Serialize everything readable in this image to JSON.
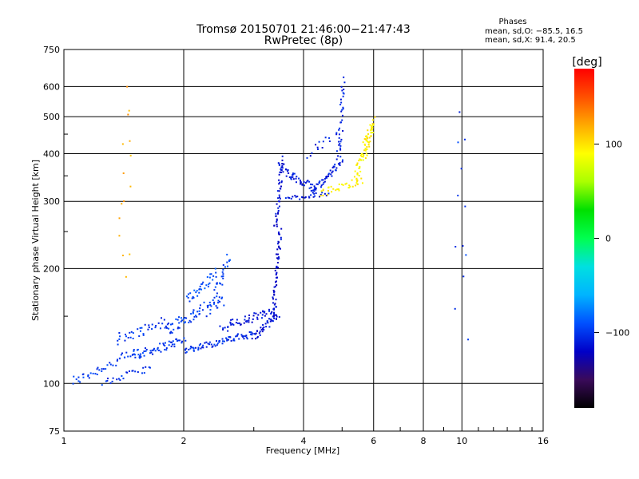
{
  "chart_data": {
    "type": "scatter",
    "title": "Tromsø 20150701 21:46:00−21:47:43",
    "subtitle": "RwPretec (8p)",
    "xlabel": "Frequency [MHz]",
    "ylabel": "Stationary phase Virtual Height [km]",
    "x_scale": "log",
    "y_scale": "log",
    "xlim": [
      1,
      16
    ],
    "ylim": [
      75,
      750
    ],
    "x_ticks": [
      {
        "value": 1,
        "label": "1"
      },
      {
        "value": 2,
        "label": "2"
      },
      {
        "value": 4,
        "label": "4"
      },
      {
        "value": 6,
        "label": "6"
      },
      {
        "value": 8,
        "label": "8"
      },
      {
        "value": 10,
        "label": "10"
      },
      {
        "value": 16,
        "label": "16"
      }
    ],
    "y_ticks": [
      {
        "value": 75,
        "label": "75"
      },
      {
        "value": 100,
        "label": "100"
      },
      {
        "value": 200,
        "label": "200"
      },
      {
        "value": 300,
        "label": "300"
      },
      {
        "value": 400,
        "label": "400"
      },
      {
        "value": 500,
        "label": "500"
      },
      {
        "value": 600,
        "label": "600"
      },
      {
        "value": 750,
        "label": "750"
      }
    ],
    "grid": true,
    "phases_legend": {
      "title": "Phases",
      "line_o": "mean, sd,O: −85.5, 16.5",
      "line_x": "mean, sd,X:  91.4, 20.5"
    },
    "colorbar": {
      "label": "[deg]",
      "range": [
        -180,
        180
      ],
      "ticks": [
        {
          "value": 100,
          "label": "100"
        },
        {
          "value": 0,
          "label": "0"
        },
        {
          "value": -100,
          "label": "−100"
        }
      ],
      "colors": [
        "#000000",
        "#3a0a5a",
        "#0000c8",
        "#0050ff",
        "#00b4ff",
        "#00e0e0",
        "#00ff50",
        "#00e000",
        "#aaff00",
        "#ffff00",
        "#ffaa00",
        "#ff5000",
        "#ff0000"
      ]
    },
    "series": [
      {
        "segments": [
          {
            "x0": 1.05,
            "x1": 1.55,
            "y0": 101,
            "y1": 122,
            "n": 45,
            "phase": -98,
            "spread": 0.06
          },
          {
            "x0": 1.5,
            "x1": 2.0,
            "y0": 118,
            "y1": 130,
            "n": 55,
            "phase": -100,
            "spread": 0.05
          },
          {
            "x0": 2.0,
            "x1": 3.0,
            "y0": 122,
            "y1": 135,
            "n": 75,
            "phase": -103,
            "spread": 0.04
          },
          {
            "x0": 3.0,
            "x1": 3.45,
            "y0": 132,
            "y1": 152,
            "n": 40,
            "phase": -115,
            "spread": 0.04
          },
          {
            "x0": 1.35,
            "x1": 1.8,
            "y0": 130,
            "y1": 145,
            "n": 35,
            "phase": -100,
            "spread": 0.07
          },
          {
            "x0": 1.8,
            "x1": 2.5,
            "y0": 138,
            "y1": 165,
            "n": 70,
            "phase": -97,
            "spread": 0.08
          },
          {
            "x0": 2.5,
            "x1": 3.4,
            "y0": 140,
            "y1": 155,
            "n": 55,
            "phase": -112,
            "spread": 0.06
          },
          {
            "x0": 2.05,
            "x1": 2.4,
            "y0": 165,
            "y1": 195,
            "n": 35,
            "phase": -92,
            "spread": 0.06
          },
          {
            "x0": 2.4,
            "x1": 2.6,
            "y0": 170,
            "y1": 215,
            "n": 25,
            "phase": -95,
            "spread": 0.05
          },
          {
            "x0": 1.25,
            "x1": 1.65,
            "y0": 100,
            "y1": 110,
            "n": 25,
            "phase": -102,
            "spread": 0.04
          },
          {
            "x0": 3.35,
            "x1": 3.5,
            "y0": 150,
            "y1": 255,
            "n": 55,
            "phase": -118,
            "spread": 0.04
          },
          {
            "x0": 3.4,
            "x1": 3.55,
            "y0": 255,
            "y1": 390,
            "n": 45,
            "phase": -115,
            "spread": 0.04
          },
          {
            "x0": 3.45,
            "x1": 4.3,
            "y0": 370,
            "y1": 320,
            "n": 50,
            "phase": -110,
            "spread": 0.05
          },
          {
            "x0": 4.2,
            "x1": 5.0,
            "y0": 320,
            "y1": 380,
            "n": 45,
            "phase": -108,
            "spread": 0.05
          },
          {
            "x0": 3.6,
            "x1": 4.6,
            "y0": 305,
            "y1": 315,
            "n": 25,
            "phase": -110,
            "spread": 0.03
          },
          {
            "x0": 4.9,
            "x1": 5.05,
            "y0": 380,
            "y1": 620,
            "n": 35,
            "phase": -108,
            "spread": 0.05
          },
          {
            "x0": 4.1,
            "x1": 4.9,
            "y0": 400,
            "y1": 450,
            "n": 15,
            "phase": -110,
            "spread": 0.06
          },
          {
            "x0": 4.4,
            "x1": 5.6,
            "y0": 315,
            "y1": 340,
            "n": 35,
            "phase": 95,
            "spread": 0.04
          },
          {
            "x0": 5.4,
            "x1": 5.95,
            "y0": 340,
            "y1": 470,
            "n": 60,
            "phase": 92,
            "spread": 0.06
          },
          {
            "x0": 5.7,
            "x1": 6.0,
            "y0": 420,
            "y1": 490,
            "n": 20,
            "phase": 100,
            "spread": 0.05
          },
          {
            "x0": 1.42,
            "x1": 1.42,
            "y0": 190,
            "y1": 560,
            "n": 15,
            "phase": 120,
            "spread": 0.15
          },
          {
            "x0": 10.0,
            "x1": 10.0,
            "y0": 140,
            "y1": 500,
            "n": 12,
            "phase": -100,
            "spread": 0.2
          }
        ]
      }
    ]
  }
}
